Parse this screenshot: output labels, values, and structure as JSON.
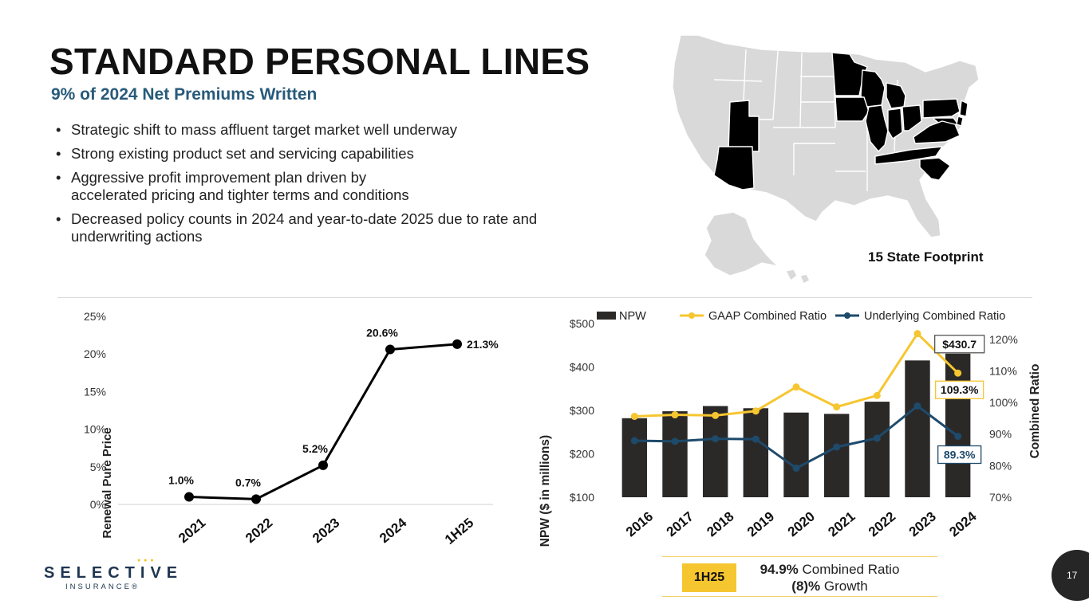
{
  "title": "STANDARD PERSONAL LINES",
  "subtitle": "9% of 2024 Net Premiums Written",
  "bullets": [
    "Strategic shift to mass affluent target market well underway",
    "Strong existing product set and servicing capabilities",
    "Aggressive profit improvement plan driven by accelerated pricing and tighter terms and conditions",
    "Decreased policy counts in 2024 and year-to-date 2025 due to rate and underwriting actions"
  ],
  "map": {
    "caption": "15 State Footprint",
    "highlight_color": "#000000",
    "base_color": "#d9d9d9"
  },
  "logo": {
    "word": "SELECTIVE",
    "sub": "INSURANCE®"
  },
  "summary": {
    "badge": "1H25",
    "ratio_value": "94.9%",
    "ratio_label": "Combined Ratio",
    "growth_value": "(8)%",
    "growth_label": "Growth"
  },
  "page_number": "17",
  "chart_data": [
    {
      "type": "line",
      "ylabel": "Renewal Pure Price",
      "ylim": [
        0,
        25
      ],
      "yticks": [
        "0%",
        "5%",
        "10%",
        "15%",
        "20%",
        "25%"
      ],
      "categories": [
        "2021",
        "2022",
        "2023",
        "2024",
        "1H25"
      ],
      "values": [
        1.0,
        0.7,
        5.2,
        20.6,
        21.3
      ],
      "labels": [
        "1.0%",
        "0.7%",
        "5.2%",
        "20.6%",
        "21.3%"
      ],
      "color": "#000000"
    },
    {
      "type": "bar",
      "ylabel": "NPW ($ in millions)",
      "y2label": "Combined Ratio",
      "ylim": [
        100,
        500
      ],
      "y2lim": [
        70,
        125
      ],
      "yticks": [
        "$100",
        "$200",
        "$300",
        "$400",
        "$500"
      ],
      "y2ticks": [
        "70%",
        "80%",
        "90%",
        "100%",
        "110%",
        "120%"
      ],
      "categories": [
        "2016",
        "2017",
        "2018",
        "2019",
        "2020",
        "2021",
        "2022",
        "2023",
        "2024"
      ],
      "legend_position": "top",
      "series": [
        {
          "name": "NPW",
          "type": "bar",
          "axis": "left",
          "color": "#2b2928",
          "values": [
            282,
            298,
            310,
            305,
            295,
            292,
            320,
            415,
            430.7
          ]
        },
        {
          "name": "GAAP Combined Ratio",
          "type": "line",
          "axis": "right",
          "color": "#f6c630",
          "values": [
            95.6,
            96.1,
            95.9,
            97.3,
            104.9,
            98.6,
            102.2,
            121.8,
            109.3
          ]
        },
        {
          "name": "Underlying Combined Ratio",
          "type": "line",
          "axis": "right",
          "color": "#1e4a6b",
          "values": [
            87.9,
            87.7,
            88.5,
            88.4,
            79.2,
            85.9,
            88.7,
            98.9,
            89.3
          ]
        }
      ],
      "callouts": {
        "npw_last": "$430.7",
        "gaap_last": "109.3%",
        "underlying_last": "89.3%"
      }
    }
  ]
}
